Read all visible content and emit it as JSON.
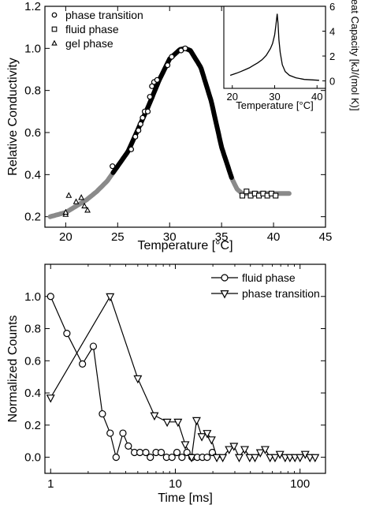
{
  "chart_data": [
    {
      "type": "scatter",
      "xlabel": "Temperature [°C]",
      "ylabel": "Relative Conductivity",
      "xlim": [
        18,
        45
      ],
      "ylim": [
        0.15,
        1.2
      ],
      "xticks": [
        20,
        25,
        30,
        35,
        40,
        45
      ],
      "yticks": [
        0.2,
        0.4,
        0.6,
        0.8,
        1.0,
        1.2
      ],
      "legend_position": "top-left",
      "series": [
        {
          "name": "phase transition",
          "marker": "circle",
          "x": [
            24.5,
            26.3,
            26.7,
            27.0,
            27.2,
            27.4,
            27.6,
            27.9,
            28.1,
            28.3,
            28.5,
            28.8,
            29.8,
            30.2,
            31.1,
            31.5
          ],
          "y": [
            0.44,
            0.52,
            0.58,
            0.61,
            0.64,
            0.67,
            0.7,
            0.7,
            0.77,
            0.82,
            0.84,
            0.85,
            0.92,
            0.96,
            0.99,
            1.0
          ]
        },
        {
          "name": "fluid phase",
          "marker": "square",
          "x": [
            37.0,
            37.4,
            37.8,
            38.2,
            38.6,
            39.0,
            39.4,
            39.8,
            40.2
          ],
          "y": [
            0.3,
            0.32,
            0.3,
            0.31,
            0.3,
            0.31,
            0.3,
            0.31,
            0.3
          ]
        },
        {
          "name": "gel phase",
          "marker": "triangle",
          "x": [
            20.0,
            20.0,
            20.3,
            21.0,
            21.5,
            21.8,
            22.1
          ],
          "y": [
            0.21,
            0.22,
            0.3,
            0.27,
            0.29,
            0.25,
            0.23
          ]
        }
      ],
      "fit_curve": {
        "x": [
          18.5,
          20,
          21,
          22,
          23,
          24,
          25,
          26,
          27,
          28,
          29,
          30,
          31,
          31.5,
          32,
          33,
          34,
          35,
          36,
          36.5,
          37,
          38,
          39,
          40,
          41.5
        ],
        "y": [
          0.2,
          0.22,
          0.25,
          0.28,
          0.32,
          0.37,
          0.44,
          0.51,
          0.62,
          0.73,
          0.85,
          0.95,
          0.995,
          1.0,
          0.99,
          0.91,
          0.75,
          0.53,
          0.38,
          0.33,
          0.31,
          0.31,
          0.31,
          0.31,
          0.31
        ],
        "color_gray": "#8a8a8a",
        "color_black": "#000000",
        "black_range": [
          24.5,
          36.0
        ]
      },
      "inset": {
        "type": "line",
        "xlabel": "Temperature [°C]",
        "ylabel": "Heat Capacity [kJ/(mol K)]",
        "xlim": [
          18,
          42
        ],
        "ylim": [
          -0.6,
          6
        ],
        "xticks": [
          20,
          30,
          40
        ],
        "yticks": [
          0,
          2,
          4,
          6
        ],
        "x": [
          19.5,
          21,
          22,
          23,
          24,
          25,
          26,
          27,
          28,
          29,
          29.5,
          30,
          30.3,
          30.6,
          30.8,
          31,
          31.3,
          31.8,
          32.5,
          33.5,
          35,
          37,
          39,
          40.5
        ],
        "y": [
          0.45,
          0.62,
          0.75,
          0.9,
          1.05,
          1.25,
          1.45,
          1.7,
          2.05,
          2.6,
          3.0,
          3.7,
          4.5,
          5.4,
          4.6,
          3.3,
          2.3,
          1.3,
          0.75,
          0.45,
          0.25,
          0.12,
          0.08,
          0.05
        ]
      }
    },
    {
      "type": "line",
      "xlabel": "Time [ms]",
      "ylabel": "Normalized Counts",
      "xscale": "log",
      "xlim": [
        0.9,
        160
      ],
      "ylim": [
        -0.1,
        1.2
      ],
      "xticks": [
        1,
        10,
        100
      ],
      "xtick_labels": [
        "1",
        "10",
        "100"
      ],
      "yticks": [
        0.0,
        0.2,
        0.4,
        0.6,
        0.8,
        1.0
      ],
      "ytick_labels": [
        "0.0",
        "0.2",
        "0.4",
        "0.6",
        "0.8",
        "1.0"
      ],
      "legend_position": "top-right",
      "series": [
        {
          "name": "fluid phase",
          "marker": "circle",
          "x": [
            1.0,
            1.35,
            1.8,
            2.2,
            2.6,
            3.0,
            3.35,
            3.8,
            4.2,
            4.7,
            5.2,
            5.8,
            6.3,
            7.0,
            7.7,
            8.5,
            9.4,
            10.3,
            11.3,
            12.4,
            13.6,
            15.0,
            16.5,
            18.0,
            19.8
          ],
          "y": [
            1.0,
            0.77,
            0.58,
            0.69,
            0.27,
            0.15,
            0.0,
            0.15,
            0.07,
            0.03,
            0.03,
            0.03,
            0.0,
            0.03,
            0.03,
            0.0,
            0.0,
            0.03,
            0.0,
            0.03,
            0.0,
            0.0,
            0.0,
            0.0,
            0.03
          ]
        },
        {
          "name": "phase transition",
          "marker": "triangle-down",
          "x": [
            1.0,
            3.0,
            5.0,
            6.8,
            8.6,
            10.5,
            12.0,
            13.5,
            14.8,
            16.3,
            18.0,
            19.5,
            21.5,
            24.0,
            27.0,
            29.5,
            32.5,
            36.0,
            39.5,
            43.5,
            48.0,
            52.5,
            57.5,
            63.0,
            69.0,
            76.0,
            83.0,
            91.0,
            100.0,
            110.0,
            120.0,
            132.0
          ],
          "y": [
            0.37,
            1.0,
            0.49,
            0.26,
            0.22,
            0.22,
            0.08,
            0.0,
            0.23,
            0.13,
            0.15,
            0.11,
            0.0,
            0.0,
            0.05,
            0.07,
            0.0,
            0.05,
            0.0,
            0.0,
            0.03,
            0.05,
            0.0,
            0.0,
            0.02,
            0.0,
            0.0,
            0.0,
            0.0,
            0.02,
            0.0,
            0.0
          ]
        }
      ]
    }
  ]
}
